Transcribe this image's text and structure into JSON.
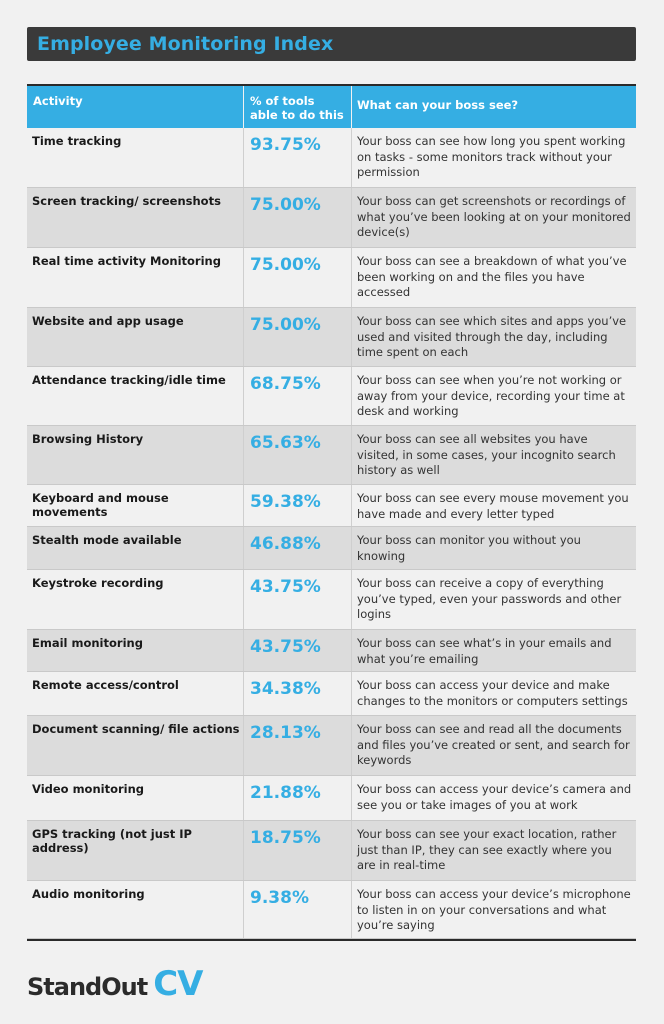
{
  "title": "Employee Monitoring Index",
  "table": {
    "headers": {
      "activity": "Activity",
      "percent_line1": "% of tools",
      "percent_line2": "able to do this",
      "what": "What can your boss see?"
    },
    "rows": [
      {
        "activity": "Time tracking",
        "percent": "93.75%",
        "what": "Your boss can see how long you spent working on tasks - some monitors track without your permission"
      },
      {
        "activity": "Screen tracking/ screenshots",
        "percent": "75.00%",
        "what": "Your boss can get screenshots or recordings of what you’ve been looking at on your monitored device(s)"
      },
      {
        "activity": "Real time activity Monitoring",
        "percent": "75.00%",
        "what": "Your boss can see a breakdown of what you’ve been working on and the files you have accessed"
      },
      {
        "activity": "Website and app usage",
        "percent": "75.00%",
        "what": "Your boss can see which sites and apps you’ve used and visited through the day, including time spent on each"
      },
      {
        "activity": "Attendance tracking/idle time",
        "percent": "68.75%",
        "what": "Your boss can see when you’re not working or away from your device, recording your time at desk and working"
      },
      {
        "activity": "Browsing History",
        "percent": "65.63%",
        "what": "Your boss can see all websites you have visited, in some cases, your incognito search history as well"
      },
      {
        "activity": "Keyboard and mouse movements",
        "percent": "59.38%",
        "what": "Your boss can see every mouse movement you have made and every letter typed"
      },
      {
        "activity": "Stealth mode available",
        "percent": "46.88%",
        "what": "Your boss can monitor you without you knowing"
      },
      {
        "activity": "Keystroke recording",
        "percent": "43.75%",
        "what": "Your boss can receive a copy of everything you’ve typed, even your passwords and other logins"
      },
      {
        "activity": "Email monitoring",
        "percent": "43.75%",
        "what": "Your boss can see what’s in your emails and what you’re emailing"
      },
      {
        "activity": "Remote access/control",
        "percent": "34.38%",
        "what": "Your boss can access your device and make changes to the monitors or computers settings"
      },
      {
        "activity": "Document scanning/ file actions",
        "percent": "28.13%",
        "what": "Your boss can see and read all the documents and files you’ve created or sent, and search for keywords"
      },
      {
        "activity": "Video monitoring",
        "percent": "21.88%",
        "what": "Your boss can access your device’s camera and see you or take images of you at work"
      },
      {
        "activity": "GPS tracking (not just IP address)",
        "percent": "18.75%",
        "what": "Your boss can see your exact location, rather just than IP, they can see exactly where you are in real-time"
      },
      {
        "activity": "Audio monitoring",
        "percent": "9.38%",
        "what": "Your boss can access your device’s microphone to listen in on your conversations and what you’re saying"
      }
    ]
  },
  "logo": {
    "part1": "StandOut",
    "part2": "CV"
  },
  "colors": {
    "accent": "#35aee3",
    "title_bar": "#3a3a3a",
    "row_alt": "#dcdcdc",
    "background": "#f1f1f1"
  }
}
